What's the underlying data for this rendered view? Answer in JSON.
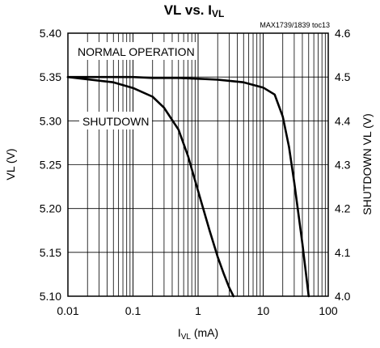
{
  "chart_data": {
    "type": "line",
    "title": "VL vs. I",
    "title_subscript": "VL",
    "reference": "MAX1739/1839 toc13",
    "xlabel": "I",
    "xlabel_subscript": "VL",
    "xlabel_unit": " (mA)",
    "ylabel": "VL (V)",
    "y2label": "SHUTDOWN VL (V)",
    "xscale": "log",
    "xlim": [
      0.01,
      100
    ],
    "ylim": [
      5.1,
      5.4
    ],
    "y2lim": [
      4.0,
      4.6
    ],
    "grid": true,
    "x_ticks": [
      0.01,
      0.1,
      1,
      10,
      100
    ],
    "x_tick_labels": [
      "0.01",
      "0.1",
      "1",
      "10",
      "100"
    ],
    "y_ticks": [
      5.1,
      5.15,
      5.2,
      5.25,
      5.3,
      5.35,
      5.4
    ],
    "y_tick_labels": [
      "5.10",
      "5.15",
      "5.20",
      "5.25",
      "5.30",
      "5.35",
      "5.40"
    ],
    "y2_ticks": [
      4.0,
      4.1,
      4.2,
      4.3,
      4.4,
      4.5,
      4.6
    ],
    "y2_tick_labels": [
      "4.0",
      "4.1",
      "4.2",
      "4.3",
      "4.4",
      "4.5",
      "4.6"
    ],
    "series": [
      {
        "name": "NORMAL OPERATION",
        "axis": "left",
        "x": [
          0.01,
          0.1,
          0.2,
          0.5,
          1,
          2,
          5,
          10,
          15,
          20,
          25,
          30,
          40,
          50
        ],
        "y": [
          5.35,
          5.35,
          5.349,
          5.349,
          5.348,
          5.347,
          5.344,
          5.338,
          5.33,
          5.305,
          5.27,
          5.23,
          5.16,
          5.1
        ]
      },
      {
        "name": "SHUTDOWN",
        "axis": "right",
        "x": [
          0.01,
          0.05,
          0.1,
          0.2,
          0.3,
          0.5,
          0.7,
          1,
          1.5,
          2,
          2.5,
          3,
          3.5
        ],
        "y": [
          4.5,
          4.488,
          4.475,
          4.455,
          4.43,
          4.38,
          4.32,
          4.24,
          4.15,
          4.09,
          4.05,
          4.02,
          4.0
        ]
      }
    ],
    "annotations": [
      "NORMAL OPERATION",
      "SHUTDOWN"
    ]
  }
}
